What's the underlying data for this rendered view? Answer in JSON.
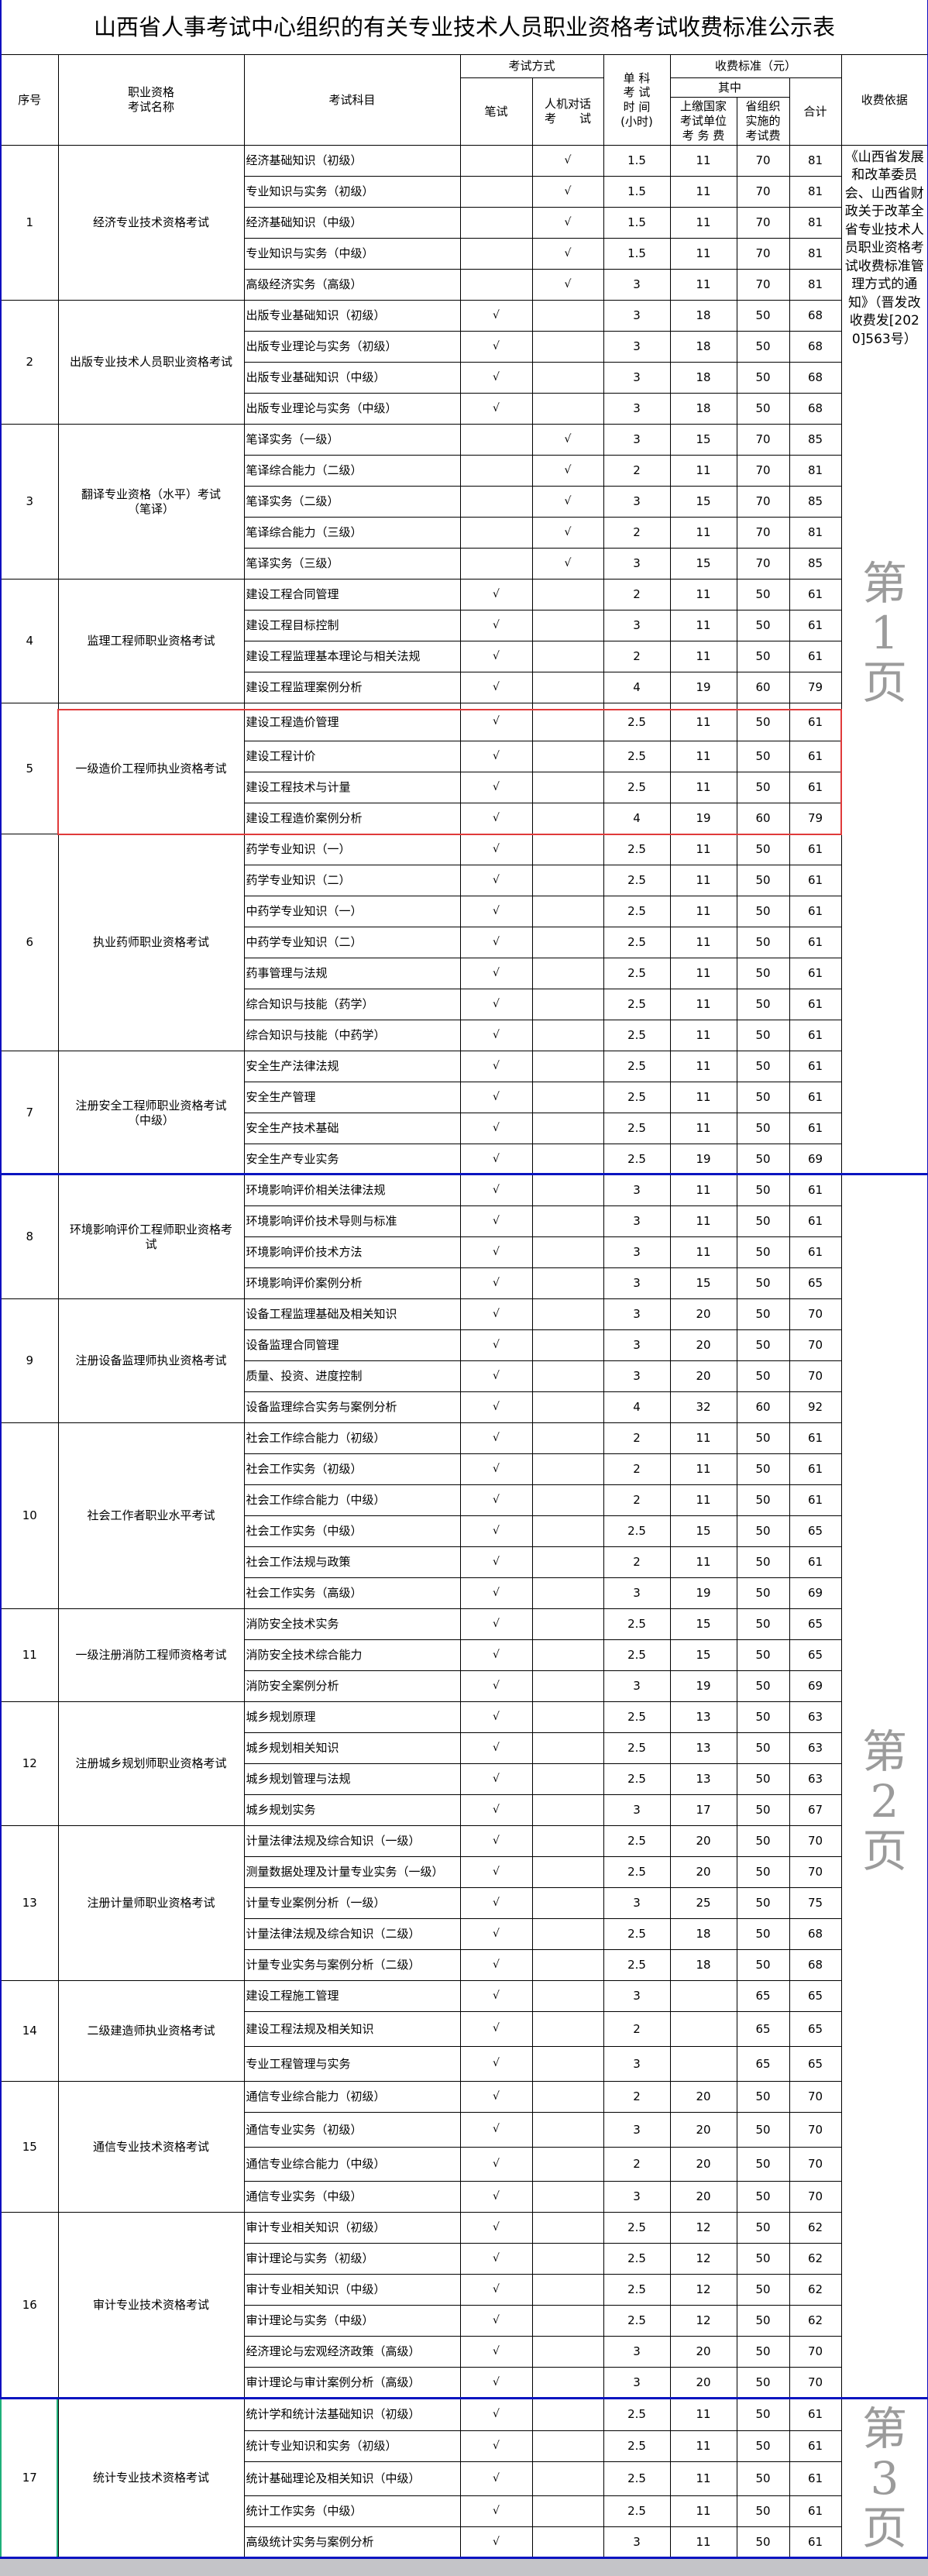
{
  "title": "山西省人事考试中心组织的有关专业技术人员职业资格考试收费标准公示表",
  "header": {
    "seq": "序号",
    "exam_name": "职业资格\n考试名称",
    "subject": "考试科目",
    "method": "考试方式",
    "written": "笔试",
    "computer": "人机对话\n考　　试",
    "hours": "单 科\n考 试\n时 间\n(小时)",
    "fee_standard": "收费标准（元）",
    "of_which": "其中",
    "national_fee": "上缴国家\n考试单位\n考 务 费",
    "provincial_fee": "省组织\n实施的\n考试费",
    "total": "合计",
    "basis": "收费依据"
  },
  "basis_text": "《山西省发展和改革委员会、山西省财政关于改革全省专业技术人员职业资格考试收费标准管理方式的通知》（晋发改收费发[2020]563号）",
  "check_mark": "√",
  "watermarks": [
    "第 1 页",
    "第 2 页",
    "第 3 页"
  ],
  "colors": {
    "page_break": "#0a14c0",
    "highlight_red": "#e03a3a",
    "selection_green": "#1fb07a",
    "watermark": "#8a8a8a"
  },
  "groups": [
    {
      "seq": "1",
      "name": "经济专业技术资格考试",
      "rows": [
        {
          "subject": "经济基础知识（初级）",
          "written": "",
          "computer": "√",
          "hours": "1.5",
          "national": "11",
          "provincial": "70",
          "total": "81"
        },
        {
          "subject": "专业知识与实务（初级）",
          "written": "",
          "computer": "√",
          "hours": "1.5",
          "national": "11",
          "provincial": "70",
          "total": "81"
        },
        {
          "subject": "经济基础知识（中级）",
          "written": "",
          "computer": "√",
          "hours": "1.5",
          "national": "11",
          "provincial": "70",
          "total": "81"
        },
        {
          "subject": "专业知识与实务（中级）",
          "written": "",
          "computer": "√",
          "hours": "1.5",
          "national": "11",
          "provincial": "70",
          "total": "81"
        },
        {
          "subject": "高级经济实务（高级）",
          "written": "",
          "computer": "√",
          "hours": "3",
          "national": "11",
          "provincial": "70",
          "total": "81"
        }
      ]
    },
    {
      "seq": "2",
      "name": "出版专业技术人员职业资格考试",
      "rows": [
        {
          "subject": "出版专业基础知识（初级）",
          "written": "√",
          "computer": "",
          "hours": "3",
          "national": "18",
          "provincial": "50",
          "total": "68"
        },
        {
          "subject": "出版专业理论与实务（初级）",
          "written": "√",
          "computer": "",
          "hours": "3",
          "national": "18",
          "provincial": "50",
          "total": "68"
        },
        {
          "subject": "出版专业基础知识（中级）",
          "written": "√",
          "computer": "",
          "hours": "3",
          "national": "18",
          "provincial": "50",
          "total": "68"
        },
        {
          "subject": "出版专业理论与实务（中级）",
          "written": "√",
          "computer": "",
          "hours": "3",
          "national": "18",
          "provincial": "50",
          "total": "68"
        }
      ]
    },
    {
      "seq": "3",
      "name": "翻译专业资格（水平）考试\n（笔译）",
      "rows": [
        {
          "subject": "笔译实务（一级）",
          "written": "",
          "computer": "√",
          "hours": "3",
          "national": "15",
          "provincial": "70",
          "total": "85"
        },
        {
          "subject": "笔译综合能力（二级）",
          "written": "",
          "computer": "√",
          "hours": "2",
          "national": "11",
          "provincial": "70",
          "total": "81"
        },
        {
          "subject": "笔译实务（二级）",
          "written": "",
          "computer": "√",
          "hours": "3",
          "national": "15",
          "provincial": "70",
          "total": "85"
        },
        {
          "subject": "笔译综合能力（三级）",
          "written": "",
          "computer": "√",
          "hours": "2",
          "national": "11",
          "provincial": "70",
          "total": "81"
        },
        {
          "subject": "笔译实务（三级）",
          "written": "",
          "computer": "√",
          "hours": "3",
          "national": "15",
          "provincial": "70",
          "total": "85"
        }
      ]
    },
    {
      "seq": "4",
      "name": "监理工程师职业资格考试",
      "rows": [
        {
          "subject": "建设工程合同管理",
          "written": "√",
          "computer": "",
          "hours": "2",
          "national": "11",
          "provincial": "50",
          "total": "61"
        },
        {
          "subject": "建设工程目标控制",
          "written": "√",
          "computer": "",
          "hours": "3",
          "national": "11",
          "provincial": "50",
          "total": "61"
        },
        {
          "subject": "建设工程监理基本理论与相关法规",
          "written": "√",
          "computer": "",
          "hours": "2",
          "national": "11",
          "provincial": "50",
          "total": "61"
        },
        {
          "subject": "建设工程监理案例分析",
          "written": "√",
          "computer": "",
          "hours": "4",
          "national": "19",
          "provincial": "60",
          "total": "79"
        }
      ]
    },
    {
      "seq": "5",
      "name": "一级造价工程师执业资格考试",
      "rows": [
        {
          "subject": "建设工程造价管理",
          "written": "√",
          "computer": "",
          "hours": "2.5",
          "national": "11",
          "provincial": "50",
          "total": "61"
        },
        {
          "subject": "建设工程计价",
          "written": "√",
          "computer": "",
          "hours": "2.5",
          "national": "11",
          "provincial": "50",
          "total": "61"
        },
        {
          "subject": "建设工程技术与计量",
          "written": "√",
          "computer": "",
          "hours": "2.5",
          "national": "11",
          "provincial": "50",
          "total": "61"
        },
        {
          "subject": "建设工程造价案例分析",
          "written": "√",
          "computer": "",
          "hours": "4",
          "national": "19",
          "provincial": "60",
          "total": "79"
        }
      ]
    },
    {
      "seq": "6",
      "name": "执业药师职业资格考试",
      "rows": [
        {
          "subject": "药学专业知识（一）",
          "written": "√",
          "computer": "",
          "hours": "2.5",
          "national": "11",
          "provincial": "50",
          "total": "61"
        },
        {
          "subject": "药学专业知识（二）",
          "written": "√",
          "computer": "",
          "hours": "2.5",
          "national": "11",
          "provincial": "50",
          "total": "61"
        },
        {
          "subject": "中药学专业知识（一）",
          "written": "√",
          "computer": "",
          "hours": "2.5",
          "national": "11",
          "provincial": "50",
          "total": "61"
        },
        {
          "subject": "中药学专业知识（二）",
          "written": "√",
          "computer": "",
          "hours": "2.5",
          "national": "11",
          "provincial": "50",
          "total": "61"
        },
        {
          "subject": "药事管理与法规",
          "written": "√",
          "computer": "",
          "hours": "2.5",
          "national": "11",
          "provincial": "50",
          "total": "61"
        },
        {
          "subject": "综合知识与技能（药学）",
          "written": "√",
          "computer": "",
          "hours": "2.5",
          "national": "11",
          "provincial": "50",
          "total": "61"
        },
        {
          "subject": "综合知识与技能（中药学）",
          "written": "√",
          "computer": "",
          "hours": "2.5",
          "national": "11",
          "provincial": "50",
          "total": "61"
        }
      ]
    },
    {
      "seq": "7",
      "name": "注册安全工程师职业资格考试\n（中级）",
      "rows": [
        {
          "subject": "安全生产法律法规",
          "written": "√",
          "computer": "",
          "hours": "2.5",
          "national": "11",
          "provincial": "50",
          "total": "61"
        },
        {
          "subject": "安全生产管理",
          "written": "√",
          "computer": "",
          "hours": "2.5",
          "national": "11",
          "provincial": "50",
          "total": "61"
        },
        {
          "subject": "安全生产技术基础",
          "written": "√",
          "computer": "",
          "hours": "2.5",
          "national": "11",
          "provincial": "50",
          "total": "61"
        },
        {
          "subject": "安全生产专业实务",
          "written": "√",
          "computer": "",
          "hours": "2.5",
          "national": "19",
          "provincial": "50",
          "total": "69"
        }
      ]
    },
    {
      "seq": "8",
      "name": "环境影响评价工程师职业资格考\n试",
      "rows": [
        {
          "subject": "环境影响评价相关法律法规",
          "written": "√",
          "computer": "",
          "hours": "3",
          "national": "11",
          "provincial": "50",
          "total": "61"
        },
        {
          "subject": "环境影响评价技术导则与标准",
          "written": "√",
          "computer": "",
          "hours": "3",
          "national": "11",
          "provincial": "50",
          "total": "61"
        },
        {
          "subject": "环境影响评价技术方法",
          "written": "√",
          "computer": "",
          "hours": "3",
          "national": "11",
          "provincial": "50",
          "total": "61"
        },
        {
          "subject": "环境影响评价案例分析",
          "written": "√",
          "computer": "",
          "hours": "3",
          "national": "15",
          "provincial": "50",
          "total": "65"
        }
      ]
    },
    {
      "seq": "9",
      "name": "注册设备监理师执业资格考试",
      "rows": [
        {
          "subject": "设备工程监理基础及相关知识",
          "written": "√",
          "computer": "",
          "hours": "3",
          "national": "20",
          "provincial": "50",
          "total": "70"
        },
        {
          "subject": "设备监理合同管理",
          "written": "√",
          "computer": "",
          "hours": "3",
          "national": "20",
          "provincial": "50",
          "total": "70"
        },
        {
          "subject": "质量、投资、进度控制",
          "written": "√",
          "computer": "",
          "hours": "3",
          "national": "20",
          "provincial": "50",
          "total": "70"
        },
        {
          "subject": "设备监理综合实务与案例分析",
          "written": "√",
          "computer": "",
          "hours": "4",
          "national": "32",
          "provincial": "60",
          "total": "92"
        }
      ]
    },
    {
      "seq": "10",
      "name": "社会工作者职业水平考试",
      "rows": [
        {
          "subject": "社会工作综合能力（初级）",
          "written": "√",
          "computer": "",
          "hours": "2",
          "national": "11",
          "provincial": "50",
          "total": "61"
        },
        {
          "subject": "社会工作实务（初级）",
          "written": "√",
          "computer": "",
          "hours": "2",
          "national": "11",
          "provincial": "50",
          "total": "61"
        },
        {
          "subject": "社会工作综合能力（中级）",
          "written": "√",
          "computer": "",
          "hours": "2",
          "national": "11",
          "provincial": "50",
          "total": "61"
        },
        {
          "subject": " 社会工作实务（中级）",
          "written": "√",
          "computer": "",
          "hours": "2.5",
          "national": "15",
          "provincial": "50",
          "total": "65"
        },
        {
          "subject": "社会工作法规与政策",
          "written": "√",
          "computer": "",
          "hours": "2",
          "national": "11",
          "provincial": "50",
          "total": "61"
        },
        {
          "subject": "社会工作实务（高级）",
          "written": "√",
          "computer": "",
          "hours": "3",
          "national": "19",
          "provincial": "50",
          "total": "69"
        }
      ]
    },
    {
      "seq": "11",
      "name": "一级注册消防工程师资格考试",
      "rows": [
        {
          "subject": "消防安全技术实务",
          "written": "√",
          "computer": "",
          "hours": "2.5",
          "national": "15",
          "provincial": "50",
          "total": "65"
        },
        {
          "subject": "消防安全技术综合能力",
          "written": "√",
          "computer": "",
          "hours": "2.5",
          "national": "15",
          "provincial": "50",
          "total": "65"
        },
        {
          "subject": "消防安全案例分析",
          "written": "√",
          "computer": "",
          "hours": "3",
          "national": "19",
          "provincial": "50",
          "total": "69"
        }
      ]
    },
    {
      "seq": "12",
      "name": "注册城乡规划师职业资格考试",
      "rows": [
        {
          "subject": "城乡规划原理",
          "written": "√",
          "computer": "",
          "hours": "2.5",
          "national": "13",
          "provincial": "50",
          "total": "63"
        },
        {
          "subject": "城乡规划相关知识",
          "written": "√",
          "computer": "",
          "hours": "2.5",
          "national": "13",
          "provincial": "50",
          "total": "63"
        },
        {
          "subject": "城乡规划管理与法规",
          "written": "√",
          "computer": "",
          "hours": "2.5",
          "national": "13",
          "provincial": "50",
          "total": "63"
        },
        {
          "subject": "城乡规划实务",
          "written": "√",
          "computer": "",
          "hours": "3",
          "national": "17",
          "provincial": "50",
          "total": "67"
        }
      ]
    },
    {
      "seq": "13",
      "name": "注册计量师职业资格考试",
      "rows": [
        {
          "subject": "计量法律法规及综合知识（一级）",
          "written": "√",
          "computer": "",
          "hours": "2.5",
          "national": "20",
          "provincial": "50",
          "total": "70"
        },
        {
          "subject": "测量数据处理及计量专业实务（一级）",
          "written": "√",
          "computer": "",
          "hours": "2.5",
          "national": "20",
          "provincial": "50",
          "total": "70"
        },
        {
          "subject": "计量专业案例分析（一级）",
          "written": "√",
          "computer": "",
          "hours": "3",
          "national": "25",
          "provincial": "50",
          "total": "75"
        },
        {
          "subject": "计量法律法规及综合知识（二级）",
          "written": "√",
          "computer": "",
          "hours": "2.5",
          "national": "18",
          "provincial": "50",
          "total": "68"
        },
        {
          "subject": "计量专业实务与案例分析（二级）",
          "written": "√",
          "computer": "",
          "hours": "2.5",
          "national": "18",
          "provincial": "50",
          "total": "68"
        }
      ]
    },
    {
      "seq": "14",
      "name": "二级建造师执业资格考试",
      "rows": [
        {
          "subject": "建设工程施工管理",
          "written": "√",
          "computer": "",
          "hours": "3",
          "national": "",
          "provincial": "65",
          "total": "65"
        },
        {
          "subject": "建设工程法规及相关知识",
          "written": "√",
          "computer": "",
          "hours": "2",
          "national": "",
          "provincial": "65",
          "total": "65"
        },
        {
          "subject": " 专业工程管理与实务",
          "written": "√",
          "computer": "",
          "hours": "3",
          "national": "",
          "provincial": "65",
          "total": "65"
        }
      ]
    },
    {
      "seq": "15",
      "name": "通信专业技术资格考试",
      "rows": [
        {
          "subject": "通信专业综合能力（初级）",
          "written": "√",
          "computer": "",
          "hours": "2",
          "national": "20",
          "provincial": "50",
          "total": "70"
        },
        {
          "subject": "通信专业实务（初级）",
          "written": "√",
          "computer": "",
          "hours": "3",
          "national": "20",
          "provincial": "50",
          "total": "70"
        },
        {
          "subject": "通信专业综合能力（中级）",
          "written": "√",
          "computer": "",
          "hours": "2",
          "national": "20",
          "provincial": "50",
          "total": "70"
        },
        {
          "subject": "通信专业实务（中级）",
          "written": "√",
          "computer": "",
          "hours": "3",
          "national": "20",
          "provincial": "50",
          "total": "70"
        }
      ]
    },
    {
      "seq": "16",
      "name": "审计专业技术资格考试",
      "rows": [
        {
          "subject": "审计专业相关知识（初级）",
          "written": "√",
          "computer": "",
          "hours": "2.5",
          "national": "12",
          "provincial": "50",
          "total": "62"
        },
        {
          "subject": "审计理论与实务（初级）",
          "written": "√",
          "computer": "",
          "hours": "2.5",
          "national": "12",
          "provincial": "50",
          "total": "62"
        },
        {
          "subject": "审计专业相关知识（中级）",
          "written": "√",
          "computer": "",
          "hours": "2.5",
          "national": "12",
          "provincial": "50",
          "total": "62"
        },
        {
          "subject": "审计理论与实务（中级）",
          "written": "√",
          "computer": "",
          "hours": "2.5",
          "national": "12",
          "provincial": "50",
          "total": "62"
        },
        {
          "subject": "经济理论与宏观经济政策（高级）",
          "written": "√",
          "computer": "",
          "hours": "3",
          "national": "20",
          "provincial": "50",
          "total": "70"
        },
        {
          "subject": "审计理论与审计案例分析（高级）",
          "written": "√",
          "computer": "",
          "hours": "3",
          "national": "20",
          "provincial": "50",
          "total": "70"
        }
      ]
    },
    {
      "seq": "17",
      "name": "统计专业技术资格考试",
      "rows": [
        {
          "subject": "统计学和统计法基础知识（初级）",
          "written": "√",
          "computer": "",
          "hours": "2.5",
          "national": "11",
          "provincial": "50",
          "total": "61"
        },
        {
          "subject": "统计专业知识和实务（初级）",
          "written": "√",
          "computer": "",
          "hours": "2.5",
          "national": "11",
          "provincial": "50",
          "total": "61"
        },
        {
          "subject": "统计基础理论及相关知识（中级）",
          "written": "√",
          "computer": "",
          "hours": "2.5",
          "national": "11",
          "provincial": "50",
          "total": "61"
        },
        {
          "subject": "统计工作实务（中级）",
          "written": "√",
          "computer": "",
          "hours": "2.5",
          "national": "11",
          "provincial": "50",
          "total": "61"
        },
        {
          "subject": "高级统计实务与案例分析",
          "written": "√",
          "computer": "",
          "hours": "3",
          "national": "11",
          "provincial": "50",
          "total": "61"
        }
      ]
    }
  ]
}
